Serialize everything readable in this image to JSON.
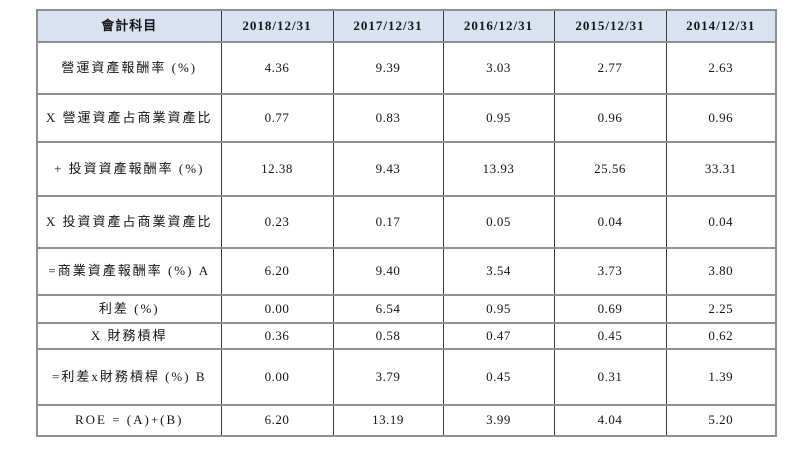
{
  "colors": {
    "header_bg": "#d8e2f1",
    "border_horizontal": "#8f8f8f",
    "border_vertical": "#3b3b3b",
    "text": "#151515"
  },
  "table": {
    "header": [
      "會計科目",
      "2018/12/31",
      "2017/12/31",
      "2016/12/31",
      "2015/12/31",
      "2014/12/31"
    ],
    "rows": [
      {
        "label": "營運資產報酬率 (%)",
        "values": [
          "4.36",
          "9.39",
          "3.03",
          "2.77",
          "2.63"
        ]
      },
      {
        "label": "X 營運資產占商業資產比",
        "values": [
          "0.77",
          "0.83",
          "0.95",
          "0.96",
          "0.96"
        ]
      },
      {
        "label": "+ 投資資產報酬率 (%)",
        "values": [
          "12.38",
          "9.43",
          "13.93",
          "25.56",
          "33.31"
        ]
      },
      {
        "label": "X 投資資產占商業資產比",
        "values": [
          "0.23",
          "0.17",
          "0.05",
          "0.04",
          "0.04"
        ]
      },
      {
        "label": "=商業資產報酬率 (%) A",
        "values": [
          "6.20",
          "9.40",
          "3.54",
          "3.73",
          "3.80"
        ]
      },
      {
        "label": "利差 (%)",
        "values": [
          "0.00",
          "6.54",
          "0.95",
          "0.69",
          "2.25"
        ]
      },
      {
        "label": "X 財務槓桿",
        "values": [
          "0.36",
          "0.58",
          "0.47",
          "0.45",
          "0.62"
        ]
      },
      {
        "label": "=利差x財務槓桿 (%) B",
        "values": [
          "0.00",
          "3.79",
          "0.45",
          "0.31",
          "1.39"
        ]
      },
      {
        "label": "ROE = (A)+(B)",
        "values": [
          "6.20",
          "13.19",
          "3.99",
          "4.04",
          "5.20"
        ]
      }
    ]
  }
}
